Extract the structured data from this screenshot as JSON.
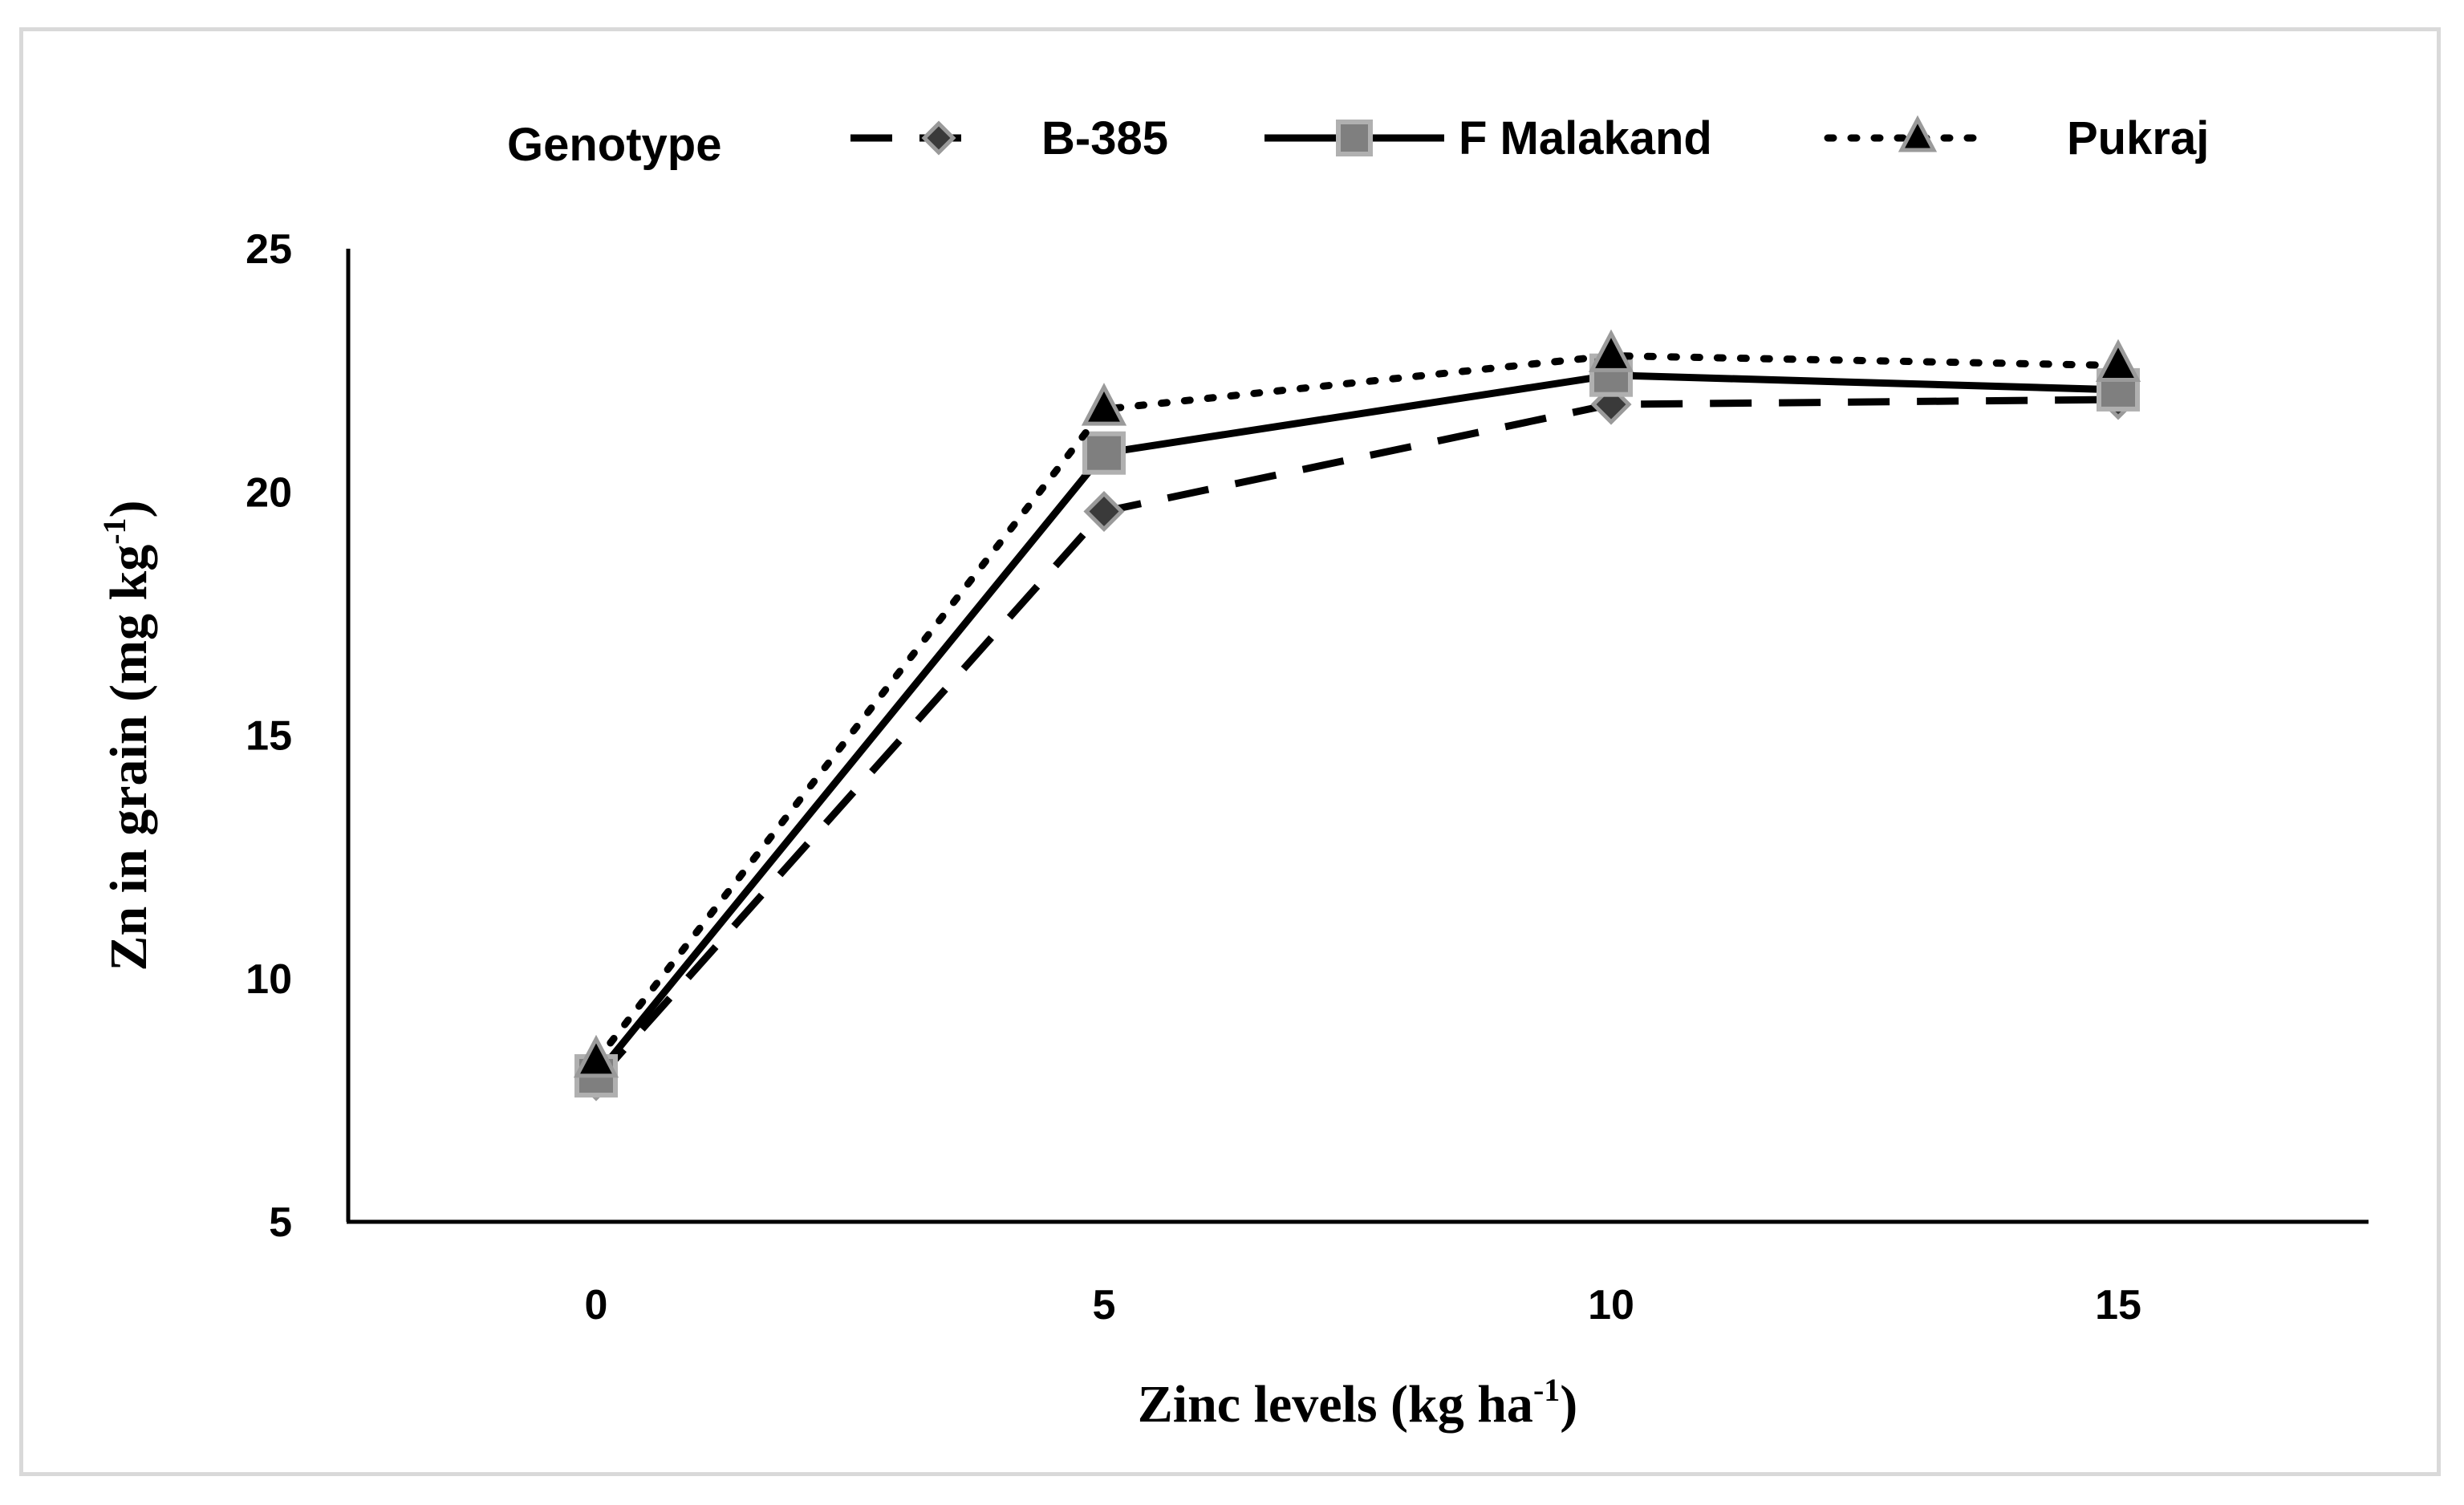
{
  "chart_data": {
    "type": "line",
    "title": "",
    "xlabel": {
      "main": "Zinc levels (kg ha",
      "sup": "-1",
      "close": ")"
    },
    "ylabel": {
      "main": "Zn in grain (mg kg",
      "sup": "-1",
      "close": ")"
    },
    "x": [
      0,
      5,
      10,
      15
    ],
    "x_tick_labels": [
      "0",
      "5",
      "10",
      "15"
    ],
    "ylim": [
      5,
      25
    ],
    "y_ticks": [
      5,
      10,
      15,
      20,
      25
    ],
    "y_tick_labels": [
      "5",
      "10",
      "15",
      "20",
      "25"
    ],
    "legend_title": "Genotype",
    "legend_position": "top",
    "grid": false,
    "series": [
      {
        "name": "B-385",
        "values": [
          7.9,
          19.6,
          21.8,
          21.9
        ],
        "line_style": "dashed",
        "marker": "diamond",
        "line_color": "#000000",
        "marker_fill": "#3a3a3a",
        "marker_stroke": "#9a9a9a"
      },
      {
        "name": "F Malakand",
        "values": [
          8.0,
          20.8,
          22.4,
          22.1
        ],
        "line_style": "solid",
        "marker": "square",
        "line_color": "#000000",
        "marker_fill": "#7f7f7f",
        "marker_stroke": "#b0b0b0"
      },
      {
        "name": "Pukraj",
        "values": [
          8.3,
          21.7,
          22.8,
          22.6
        ],
        "line_style": "dotted",
        "marker": "triangle",
        "line_color": "#000000",
        "marker_fill": "#000000",
        "marker_stroke": "#9a9a9a"
      }
    ]
  }
}
